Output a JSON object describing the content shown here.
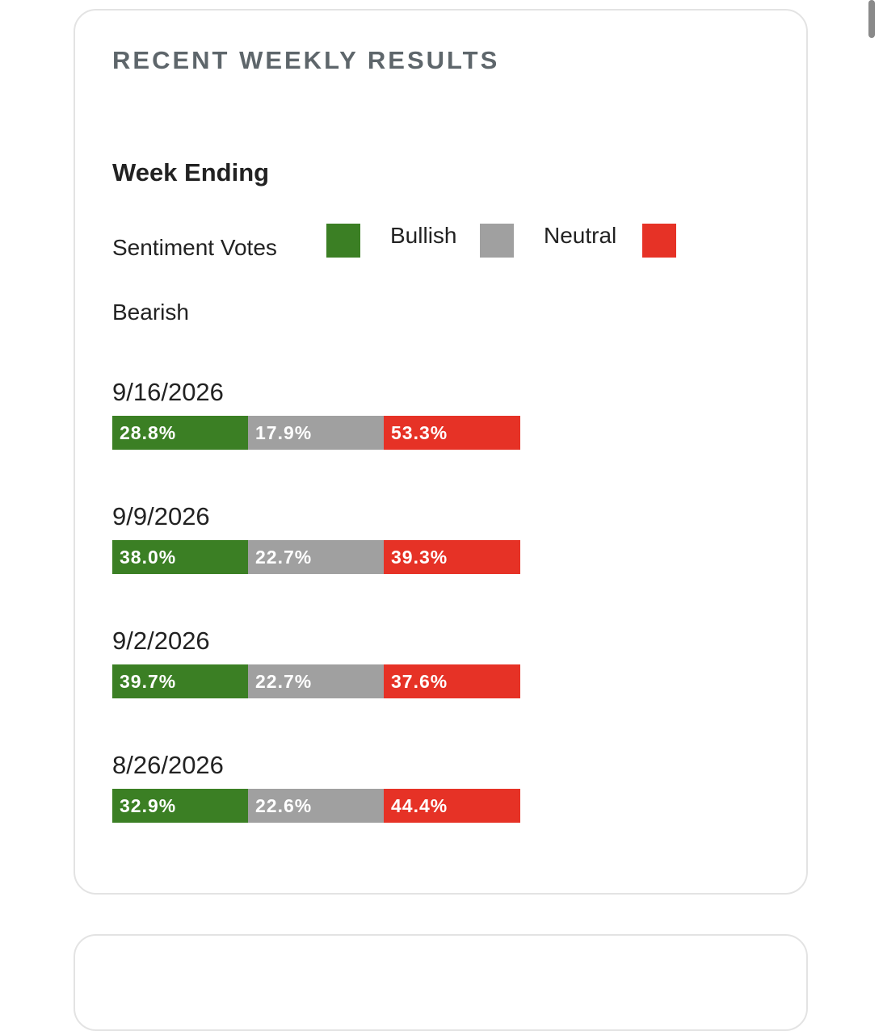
{
  "widget": {
    "title": "RECENT WEEKLY RESULTS",
    "week_ending_label": "Week Ending",
    "legend": {
      "prefix": "Sentiment Votes",
      "items": [
        {
          "label": "Bullish",
          "color": "#3b7f24"
        },
        {
          "label": "Neutral",
          "color": "#a0a0a0"
        },
        {
          "label": "Bearish",
          "color": "#e63226"
        }
      ]
    },
    "weeks": [
      {
        "date": "9/16/2026",
        "bullish": "28.8%",
        "neutral": "17.9%",
        "bearish": "53.3%"
      },
      {
        "date": "9/9/2026",
        "bullish": "38.0%",
        "neutral": "22.7%",
        "bearish": "39.3%"
      },
      {
        "date": "9/2/2026",
        "bullish": "39.7%",
        "neutral": "22.7%",
        "bearish": "37.6%"
      },
      {
        "date": "8/26/2026",
        "bullish": "32.9%",
        "neutral": "22.6%",
        "bearish": "44.4%"
      }
    ]
  }
}
